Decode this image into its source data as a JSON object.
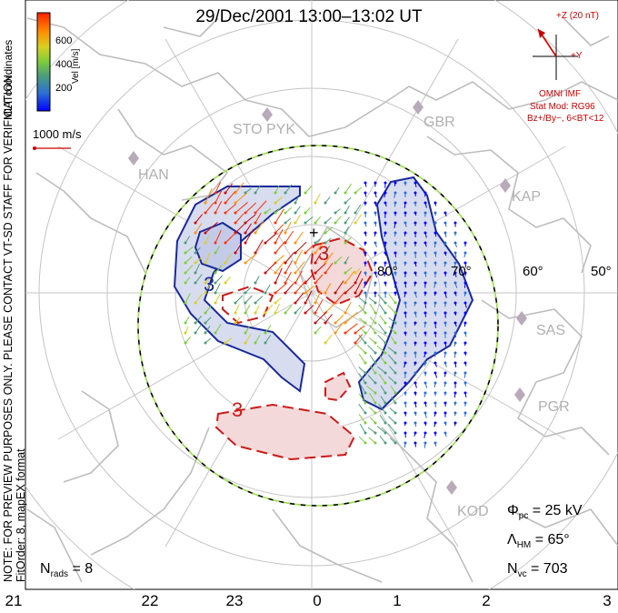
{
  "title": "29/Dec/2001  13:00–13:02  UT",
  "colorbar": {
    "ticks": [
      "600",
      "400",
      "200"
    ],
    "label": "Vel [m/s]",
    "colors": [
      "#0000ff",
      "#2a6fd6",
      "#4c9e7a",
      "#7ccd3a",
      "#d8d020",
      "#ff9000",
      "#ff3000",
      "#cc0000"
    ]
  },
  "coords_label": "MLT coordinates",
  "ref_vector": {
    "label": "1000 m/s",
    "color": "#cc0000"
  },
  "imf": {
    "z_label": "+Z (20 nT)",
    "y_label": "+Y",
    "source": "OMNI IMF",
    "model": "Stat Mod: RG96",
    "condition": "Bz+/By−, 6<BT<12",
    "color": "#cc0000"
  },
  "notes": {
    "preview": "NOTE: FOR PREVIEW PURPOSES ONLY. PLEASE CONTACT VT-SD STAFF FOR VERIFICATION.",
    "fit": "FitOrder: 8, mapEX format"
  },
  "latitude_labels": [
    "80°",
    "70°",
    "60°",
    "50°"
  ],
  "stations": [
    "STO",
    "PYK",
    "HAN",
    "GBR",
    "KAP",
    "SAS",
    "PGR",
    "KOD"
  ],
  "contour_labels": [
    "3",
    "3",
    "3"
  ],
  "contour_colors": {
    "positive": "#1a2a9a",
    "positive_fill": "#d7dcef",
    "negative": "#cc1a1a",
    "negative_fill": "#f3d9d9"
  },
  "mlt_hours": [
    "21",
    "22",
    "23",
    "0",
    "1",
    "2",
    "3"
  ],
  "stats": {
    "phi_pc": {
      "symbol": "Φ",
      "sub": "pc",
      "value": "= 25 kV"
    },
    "lambda_hm": {
      "symbol": "Λ",
      "sub": "HM",
      "value": "= 65°"
    },
    "n_vc": {
      "symbol": "N",
      "sub": "vc",
      "value": "= 703"
    },
    "n_rads": {
      "symbol": "N",
      "sub": "rads",
      "value": "= 8"
    }
  }
}
